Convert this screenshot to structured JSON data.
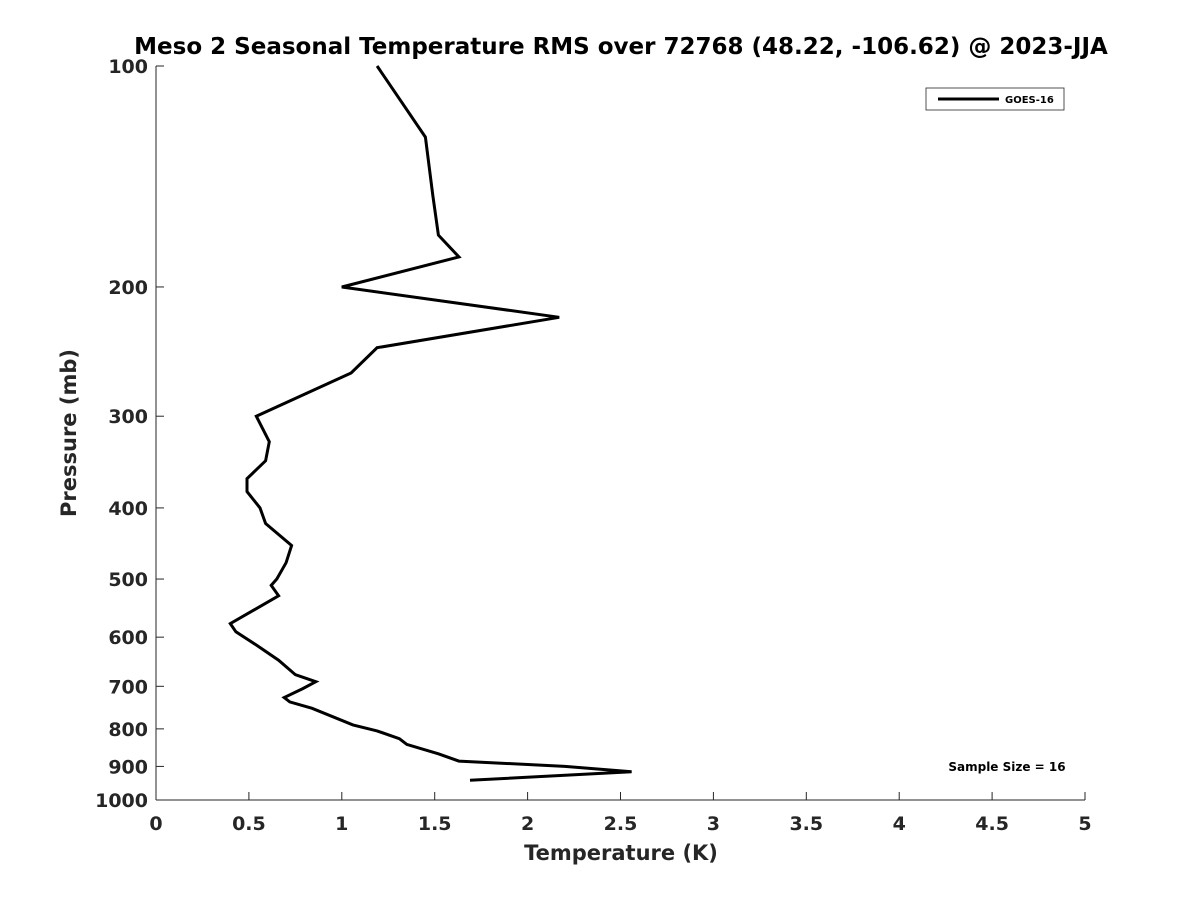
{
  "chart_data": {
    "type": "line",
    "title": "Meso 2 Seasonal Temperature RMS over 72768 (48.22, -106.62) @ 2023-JJA",
    "xlabel": "Temperature (K)",
    "ylabel": "Pressure (mb)",
    "xlim": [
      0,
      5
    ],
    "ylim": [
      100,
      1000
    ],
    "y_scale": "log",
    "y_reversed": true,
    "x_ticks": [
      "0",
      "0.5",
      "1",
      "1.5",
      "2",
      "2.5",
      "3",
      "3.5",
      "4",
      "4.5",
      "5"
    ],
    "y_ticks": [
      "100",
      "200",
      "300",
      "400",
      "500",
      "600",
      "700",
      "800",
      "900",
      "1000"
    ],
    "legend_position": "top-right",
    "annotation": "Sample Size = 16",
    "grid": false,
    "series": [
      {
        "name": "GOES-16",
        "color": "#000000",
        "points": [
          [
            1.19,
            100
          ],
          [
            1.45,
            125
          ],
          [
            1.49,
            150
          ],
          [
            1.52,
            170
          ],
          [
            1.63,
            182
          ],
          [
            1.0,
            200
          ],
          [
            2.17,
            220
          ],
          [
            1.19,
            242
          ],
          [
            1.05,
            262
          ],
          [
            0.54,
            300
          ],
          [
            0.61,
            325
          ],
          [
            0.59,
            345
          ],
          [
            0.49,
            365
          ],
          [
            0.49,
            380
          ],
          [
            0.56,
            400
          ],
          [
            0.59,
            420
          ],
          [
            0.73,
            450
          ],
          [
            0.7,
            475
          ],
          [
            0.65,
            500
          ],
          [
            0.62,
            510
          ],
          [
            0.66,
            527
          ],
          [
            0.4,
            575
          ],
          [
            0.43,
            590
          ],
          [
            0.54,
            615
          ],
          [
            0.66,
            645
          ],
          [
            0.75,
            675
          ],
          [
            0.86,
            690
          ],
          [
            0.79,
            705
          ],
          [
            0.69,
            725
          ],
          [
            0.72,
            735
          ],
          [
            0.84,
            750
          ],
          [
            1.06,
            790
          ],
          [
            1.19,
            805
          ],
          [
            1.31,
            825
          ],
          [
            1.35,
            840
          ],
          [
            1.52,
            865
          ],
          [
            1.63,
            885
          ],
          [
            2.2,
            900
          ],
          [
            2.56,
            915
          ],
          [
            1.69,
            940
          ]
        ]
      }
    ]
  }
}
